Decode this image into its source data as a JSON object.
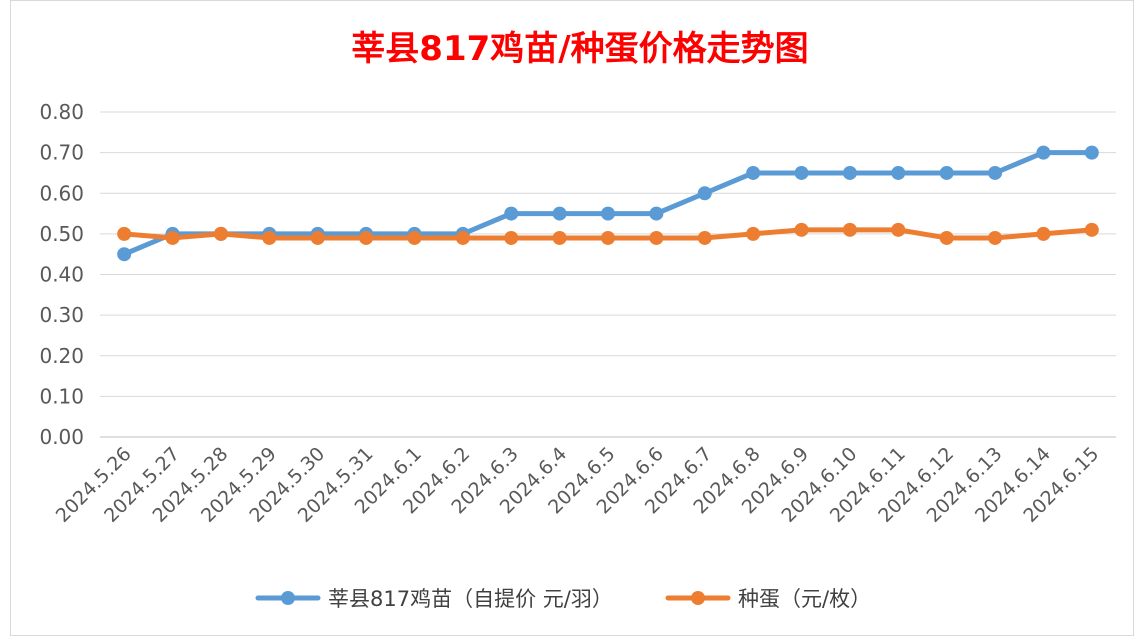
{
  "chart_data": {
    "type": "line",
    "title": "莘县817鸡苗/种蛋价格走势图",
    "categories": [
      "2024.5.26",
      "2024.5.27",
      "2024.5.28",
      "2024.5.29",
      "2024.5.30",
      "2024.5.31",
      "2024.6.1",
      "2024.6.2",
      "2024.6.3",
      "2024.6.4",
      "2024.6.5",
      "2024.6.6",
      "2024.6.7",
      "2024.6.8",
      "2024.6.9",
      "2024.6.10",
      "2024.6.11",
      "2024.6.12",
      "2024.6.13",
      "2024.6.14",
      "2024.6.15"
    ],
    "yticks": [
      "0.00",
      "0.10",
      "0.20",
      "0.30",
      "0.40",
      "0.50",
      "0.60",
      "0.70",
      "0.80"
    ],
    "ylim": [
      0,
      0.8
    ],
    "grid": true,
    "legend_position": "bottom",
    "series": [
      {
        "name": "莘县817鸡苗（自提价 元/羽）",
        "color": "#5b9bd5",
        "values": [
          0.45,
          0.5,
          0.5,
          0.5,
          0.5,
          0.5,
          0.5,
          0.5,
          0.55,
          0.55,
          0.55,
          0.55,
          0.6,
          0.65,
          0.65,
          0.65,
          0.65,
          0.65,
          0.65,
          0.7,
          0.7
        ]
      },
      {
        "name": "种蛋（元/枚）",
        "color": "#ed7d31",
        "values": [
          0.5,
          0.49,
          0.5,
          0.49,
          0.49,
          0.49,
          0.49,
          0.49,
          0.49,
          0.49,
          0.49,
          0.49,
          0.49,
          0.5,
          0.51,
          0.51,
          0.51,
          0.49,
          0.49,
          0.5,
          0.51
        ]
      }
    ]
  }
}
